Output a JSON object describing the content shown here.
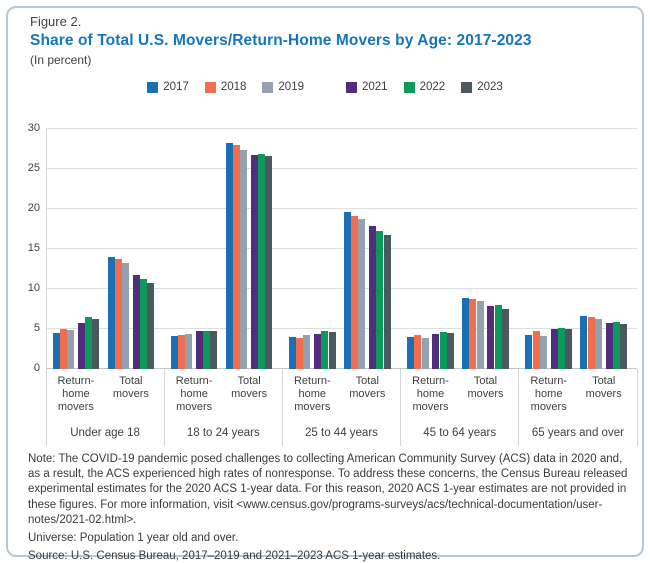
{
  "header": {
    "figure_label": "Figure 2.",
    "title": "Share of Total U.S. Movers/Return-Home Movers by Age: 2017-2023",
    "subtitle": "(In percent)"
  },
  "chart_data": {
    "type": "bar",
    "title": "Share of Total U.S. Movers/Return-Home Movers by Age: 2017-2023",
    "unit": "percent",
    "ylim": [
      0,
      30
    ],
    "y_ticks": [
      0,
      5,
      10,
      15,
      20,
      25,
      30
    ],
    "grid": true,
    "legend_position": "top-center",
    "series": [
      {
        "name": "2017",
        "color": "#1b70b5"
      },
      {
        "name": "2018",
        "color": "#f16d4d"
      },
      {
        "name": "2019",
        "color": "#93a1b0"
      },
      {
        "name": "2021",
        "color": "#522d7e"
      },
      {
        "name": "2022",
        "color": "#0b9a59"
      },
      {
        "name": "2023",
        "color": "#4a5860"
      }
    ],
    "cluster_labels": [
      "Return-\nhome\nmovers",
      "Total\nmovers"
    ],
    "age_groups": [
      {
        "label": "Under age 18",
        "return_home_movers": [
          4.5,
          5.0,
          4.9,
          5.8,
          6.5,
          6.2
        ],
        "total_movers": [
          14.0,
          13.8,
          13.2,
          11.8,
          11.2,
          10.7
        ]
      },
      {
        "label": "18 to 24 years",
        "return_home_movers": [
          4.1,
          4.2,
          4.4,
          4.7,
          4.8,
          4.7
        ],
        "total_movers": [
          28.2,
          28.0,
          27.4,
          26.7,
          26.9,
          26.6
        ]
      },
      {
        "label": "25 to 44 years",
        "return_home_movers": [
          4.0,
          3.9,
          4.2,
          4.4,
          4.8,
          4.6
        ],
        "total_movers": [
          19.6,
          19.1,
          18.8,
          17.9,
          17.3,
          16.7
        ]
      },
      {
        "label": "45 to 64 years",
        "return_home_movers": [
          4.0,
          4.2,
          3.9,
          4.4,
          4.6,
          4.5
        ],
        "total_movers": [
          8.9,
          8.7,
          8.5,
          7.9,
          8.0,
          7.5
        ]
      },
      {
        "label": "65 years and over",
        "return_home_movers": [
          4.3,
          4.7,
          4.1,
          5.0,
          5.1,
          5.0
        ],
        "total_movers": [
          6.6,
          6.5,
          6.3,
          5.8,
          5.9,
          5.6
        ]
      }
    ]
  },
  "notes": {
    "note": "Note: The COVID-19 pandemic posed challenges to collecting American Community Survey (ACS) data in 2020 and, as a result, the ACS experienced high rates of nonresponse. To address these concerns, the Census Bureau released experimental estimates for the 2020 ACS 1-year data. For this reason, 2020 ACS 1-year estimates are not provided in these figures. For more information, visit <www.census.gov/programs-surveys/acs/technical-documentation/user-notes/2021-02.html>.",
    "universe": "Universe: Population 1 year old and over.",
    "source": "Source: U.S. Census Bureau, 2017–2019 and 2021–2023 ACS 1-year estimates."
  },
  "colors": {
    "title_blue": "#1576bc",
    "border": "#b6c8d5",
    "gridline": "#dcdfe2",
    "axis_line": "#c2c6c9",
    "text": "#3f3f3f"
  }
}
